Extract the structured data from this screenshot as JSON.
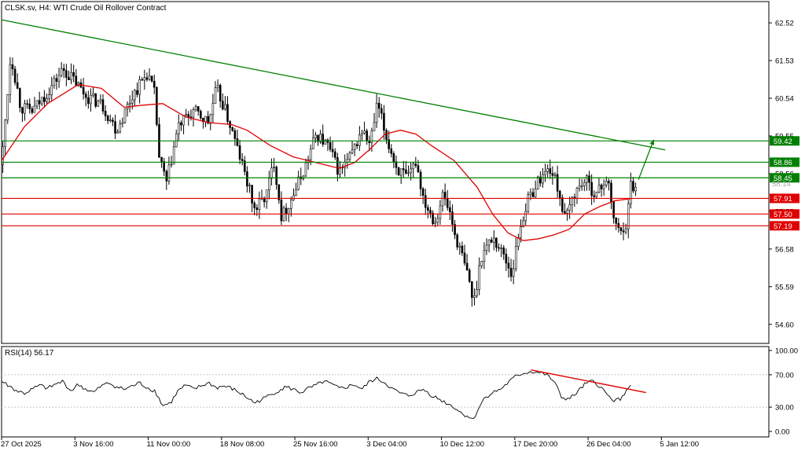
{
  "chart_data": [
    {
      "type": "candlestick",
      "title": "CLSK.sv, H4:  WTI Crude Oil Rollover Contract",
      "y_ticks": [
        "62.52",
        "61.53",
        "60.54",
        "59.55",
        "58.56",
        "57.57",
        "56.58",
        "55.59",
        "54.60"
      ],
      "ylim": [
        54.1,
        63.08
      ],
      "x_ticks": [
        "27 Oct 2025",
        "3 Nov 16:00",
        "11 Nov 00:00",
        "18 Nov 08:00",
        "25 Nov 16:00",
        "3 Dec 04:00",
        "10 Dec 12:00",
        "17 Dec 20:00",
        "26 Dec 04:00",
        "5 Jan 12:00"
      ],
      "current_price": "58.14",
      "levels": [
        {
          "value": 59.42,
          "label": "59.42",
          "kind": "resistance",
          "color": "#008000"
        },
        {
          "value": 58.86,
          "label": "58.86",
          "kind": "resistance",
          "color": "#008000"
        },
        {
          "value": 58.45,
          "label": "58.45",
          "kind": "resistance",
          "color": "#008000"
        },
        {
          "value": 57.91,
          "label": "57.91",
          "kind": "support",
          "color": "#e00000"
        },
        {
          "value": 57.5,
          "label": "57.50",
          "kind": "support",
          "color": "#e00000"
        },
        {
          "value": 57.19,
          "label": "57.19",
          "kind": "support",
          "color": "#e00000"
        }
      ],
      "trendline": {
        "from": [
          0,
          62.6
        ],
        "to": [
          1.0,
          58.65
        ],
        "color": "#008000"
      },
      "moving_average_color": "#e00000",
      "price_path": [
        [
          0.0,
          58.8
        ],
        [
          0.012,
          61.7
        ],
        [
          0.025,
          60.3
        ],
        [
          0.04,
          60.2
        ],
        [
          0.06,
          60.7
        ],
        [
          0.08,
          61.3
        ],
        [
          0.095,
          61.0
        ],
        [
          0.11,
          60.6
        ],
        [
          0.13,
          60.4
        ],
        [
          0.15,
          59.7
        ],
        [
          0.17,
          60.6
        ],
        [
          0.19,
          61.2
        ],
        [
          0.2,
          60.6
        ],
        [
          0.205,
          59.0
        ],
        [
          0.215,
          58.3
        ],
        [
          0.23,
          59.8
        ],
        [
          0.25,
          60.2
        ],
        [
          0.27,
          59.9
        ],
        [
          0.28,
          60.8
        ],
        [
          0.29,
          60.3
        ],
        [
          0.3,
          59.7
        ],
        [
          0.315,
          58.7
        ],
        [
          0.33,
          57.6
        ],
        [
          0.345,
          58.0
        ],
        [
          0.355,
          58.9
        ],
        [
          0.365,
          57.4
        ],
        [
          0.38,
          58.0
        ],
        [
          0.395,
          58.7
        ],
        [
          0.41,
          59.6
        ],
        [
          0.425,
          59.3
        ],
        [
          0.44,
          58.6
        ],
        [
          0.455,
          59.0
        ],
        [
          0.47,
          59.7
        ],
        [
          0.48,
          59.3
        ],
        [
          0.49,
          60.4
        ],
        [
          0.5,
          59.6
        ],
        [
          0.515,
          58.7
        ],
        [
          0.53,
          58.4
        ],
        [
          0.54,
          58.9
        ],
        [
          0.55,
          57.9
        ],
        [
          0.565,
          57.3
        ],
        [
          0.575,
          58.0
        ],
        [
          0.585,
          57.5
        ],
        [
          0.59,
          57.0
        ],
        [
          0.6,
          56.4
        ],
        [
          0.61,
          55.7
        ],
        [
          0.615,
          55.1
        ],
        [
          0.625,
          56.4
        ],
        [
          0.64,
          56.9
        ],
        [
          0.655,
          56.4
        ],
        [
          0.665,
          55.9
        ],
        [
          0.675,
          57.1
        ],
        [
          0.685,
          57.8
        ],
        [
          0.7,
          58.4
        ],
        [
          0.715,
          58.7
        ],
        [
          0.725,
          58.2
        ],
        [
          0.735,
          57.3
        ],
        [
          0.745,
          58.0
        ],
        [
          0.76,
          58.4
        ],
        [
          0.775,
          58.0
        ],
        [
          0.79,
          58.5
        ],
        [
          0.795,
          57.6
        ],
        [
          0.805,
          57.0
        ],
        [
          0.815,
          57.3
        ],
        [
          0.82,
          58.3
        ],
        [
          0.828,
          58.14
        ]
      ],
      "ma_path": [
        [
          0.0,
          58.9
        ],
        [
          0.03,
          59.8
        ],
        [
          0.06,
          60.4
        ],
        [
          0.08,
          60.65
        ],
        [
          0.1,
          60.9
        ],
        [
          0.13,
          60.8
        ],
        [
          0.16,
          60.3
        ],
        [
          0.18,
          60.35
        ],
        [
          0.21,
          60.4
        ],
        [
          0.24,
          60.05
        ],
        [
          0.27,
          59.9
        ],
        [
          0.3,
          59.85
        ],
        [
          0.32,
          59.7
        ],
        [
          0.35,
          59.3
        ],
        [
          0.38,
          59.0
        ],
        [
          0.41,
          58.85
        ],
        [
          0.44,
          58.7
        ],
        [
          0.46,
          58.85
        ],
        [
          0.48,
          59.2
        ],
        [
          0.5,
          59.6
        ],
        [
          0.52,
          59.7
        ],
        [
          0.54,
          59.6
        ],
        [
          0.56,
          59.3
        ],
        [
          0.59,
          58.9
        ],
        [
          0.62,
          58.2
        ],
        [
          0.64,
          57.5
        ],
        [
          0.66,
          57.0
        ],
        [
          0.68,
          56.8
        ],
        [
          0.7,
          56.85
        ],
        [
          0.72,
          56.95
        ],
        [
          0.74,
          57.1
        ],
        [
          0.76,
          57.5
        ],
        [
          0.78,
          57.7
        ],
        [
          0.8,
          57.85
        ],
        [
          0.82,
          57.9
        ]
      ]
    },
    {
      "type": "line",
      "title": "RSI(14) 56.17",
      "ylim": [
        0,
        100
      ],
      "y_ticks": [
        "100.00",
        "70.00",
        "30.00",
        "0.00"
      ],
      "guide_levels": [
        70,
        30
      ],
      "divergence_line": {
        "from": [
          0.69,
          76
        ],
        "to": [
          0.84,
          48
        ],
        "color": "#e00000"
      },
      "rsi_path": [
        [
          0.0,
          62
        ],
        [
          0.01,
          56
        ],
        [
          0.02,
          50
        ],
        [
          0.03,
          47
        ],
        [
          0.04,
          52
        ],
        [
          0.05,
          57
        ],
        [
          0.06,
          53
        ],
        [
          0.07,
          58
        ],
        [
          0.08,
          62
        ],
        [
          0.09,
          50
        ],
        [
          0.1,
          58
        ],
        [
          0.11,
          52
        ],
        [
          0.12,
          48
        ],
        [
          0.13,
          56
        ],
        [
          0.14,
          60
        ],
        [
          0.15,
          55
        ],
        [
          0.16,
          52
        ],
        [
          0.17,
          56
        ],
        [
          0.18,
          60
        ],
        [
          0.19,
          54
        ],
        [
          0.2,
          50
        ],
        [
          0.21,
          32
        ],
        [
          0.22,
          35
        ],
        [
          0.23,
          50
        ],
        [
          0.24,
          57
        ],
        [
          0.25,
          52
        ],
        [
          0.26,
          56
        ],
        [
          0.27,
          60
        ],
        [
          0.28,
          54
        ],
        [
          0.29,
          56
        ],
        [
          0.3,
          53
        ],
        [
          0.31,
          48
        ],
        [
          0.32,
          42
        ],
        [
          0.33,
          35
        ],
        [
          0.34,
          40
        ],
        [
          0.35,
          45
        ],
        [
          0.36,
          50
        ],
        [
          0.37,
          55
        ],
        [
          0.38,
          52
        ],
        [
          0.39,
          48
        ],
        [
          0.4,
          53
        ],
        [
          0.41,
          57
        ],
        [
          0.42,
          62
        ],
        [
          0.43,
          58
        ],
        [
          0.44,
          53
        ],
        [
          0.45,
          55
        ],
        [
          0.46,
          58
        ],
        [
          0.47,
          52
        ],
        [
          0.48,
          62
        ],
        [
          0.49,
          65
        ],
        [
          0.5,
          60
        ],
        [
          0.51,
          52
        ],
        [
          0.52,
          47
        ],
        [
          0.53,
          44
        ],
        [
          0.54,
          48
        ],
        [
          0.55,
          52
        ],
        [
          0.56,
          45
        ],
        [
          0.57,
          40
        ],
        [
          0.58,
          35
        ],
        [
          0.59,
          30
        ],
        [
          0.6,
          22
        ],
        [
          0.61,
          18
        ],
        [
          0.615,
          14
        ],
        [
          0.62,
          26
        ],
        [
          0.63,
          42
        ],
        [
          0.64,
          48
        ],
        [
          0.65,
          52
        ],
        [
          0.66,
          60
        ],
        [
          0.67,
          68
        ],
        [
          0.68,
          72
        ],
        [
          0.69,
          74
        ],
        [
          0.7,
          73
        ],
        [
          0.71,
          70
        ],
        [
          0.72,
          62
        ],
        [
          0.73,
          42
        ],
        [
          0.74,
          40
        ],
        [
          0.75,
          48
        ],
        [
          0.76,
          58
        ],
        [
          0.77,
          62
        ],
        [
          0.78,
          56
        ],
        [
          0.79,
          44
        ],
        [
          0.8,
          38
        ],
        [
          0.81,
          42
        ],
        [
          0.815,
          54
        ],
        [
          0.82,
          56
        ]
      ]
    }
  ]
}
